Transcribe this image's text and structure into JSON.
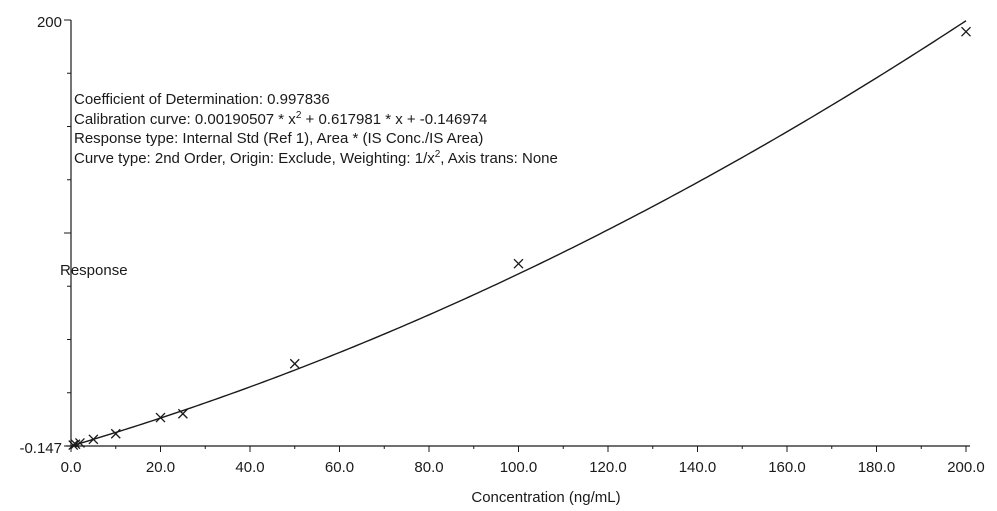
{
  "chart_data": {
    "type": "scatter",
    "title": "",
    "xlabel": "Concentration (ng/mL)",
    "ylabel": "Response",
    "xlim": [
      0,
      200
    ],
    "ylim": [
      -0.147,
      200
    ],
    "x_ticks": [
      0,
      20,
      40,
      60,
      80,
      100,
      120,
      140,
      160,
      180,
      200
    ],
    "x_tick_labels": [
      "0.0",
      "20.0",
      "40.0",
      "60.0",
      "80.0",
      "100.0",
      "120.0",
      "140.0",
      "160.0",
      "180.0",
      "200.0"
    ],
    "y_tick_labels": [
      "200",
      "-0.147"
    ],
    "grid": false,
    "annotations": {
      "line1": "Coefficient of Determination: 0.997836",
      "line2_pre": "Calibration curve: 0.00190507 * x",
      "line2_sup": "2",
      "line2_post": " + 0.617981 * x + -0.146974",
      "line3": "Response type: Internal Std (Ref 1), Area * (IS Conc./IS Area)",
      "line4_pre": "Curve type: 2nd Order, Origin: Exclude, Weighting: 1/x",
      "line4_sup": "2",
      "line4_post": ", Axis trans: None"
    },
    "curve": {
      "a": 0.00190507,
      "b": 0.617981,
      "c": -0.146974
    },
    "points": [
      {
        "x": 0.5,
        "y": 0.3
      },
      {
        "x": 1,
        "y": 0.7
      },
      {
        "x": 2,
        "y": 1.3
      },
      {
        "x": 5,
        "y": 3.0
      },
      {
        "x": 10,
        "y": 5.6
      },
      {
        "x": 20,
        "y": 13.2
      },
      {
        "x": 25,
        "y": 15.0
      },
      {
        "x": 50,
        "y": 38.5
      },
      {
        "x": 100,
        "y": 85.5
      },
      {
        "x": 200,
        "y": 194.5
      }
    ],
    "colors": {
      "axis": "#1a1a1a",
      "curve": "#1a1a1a",
      "marker": "#1a1a1a"
    }
  }
}
